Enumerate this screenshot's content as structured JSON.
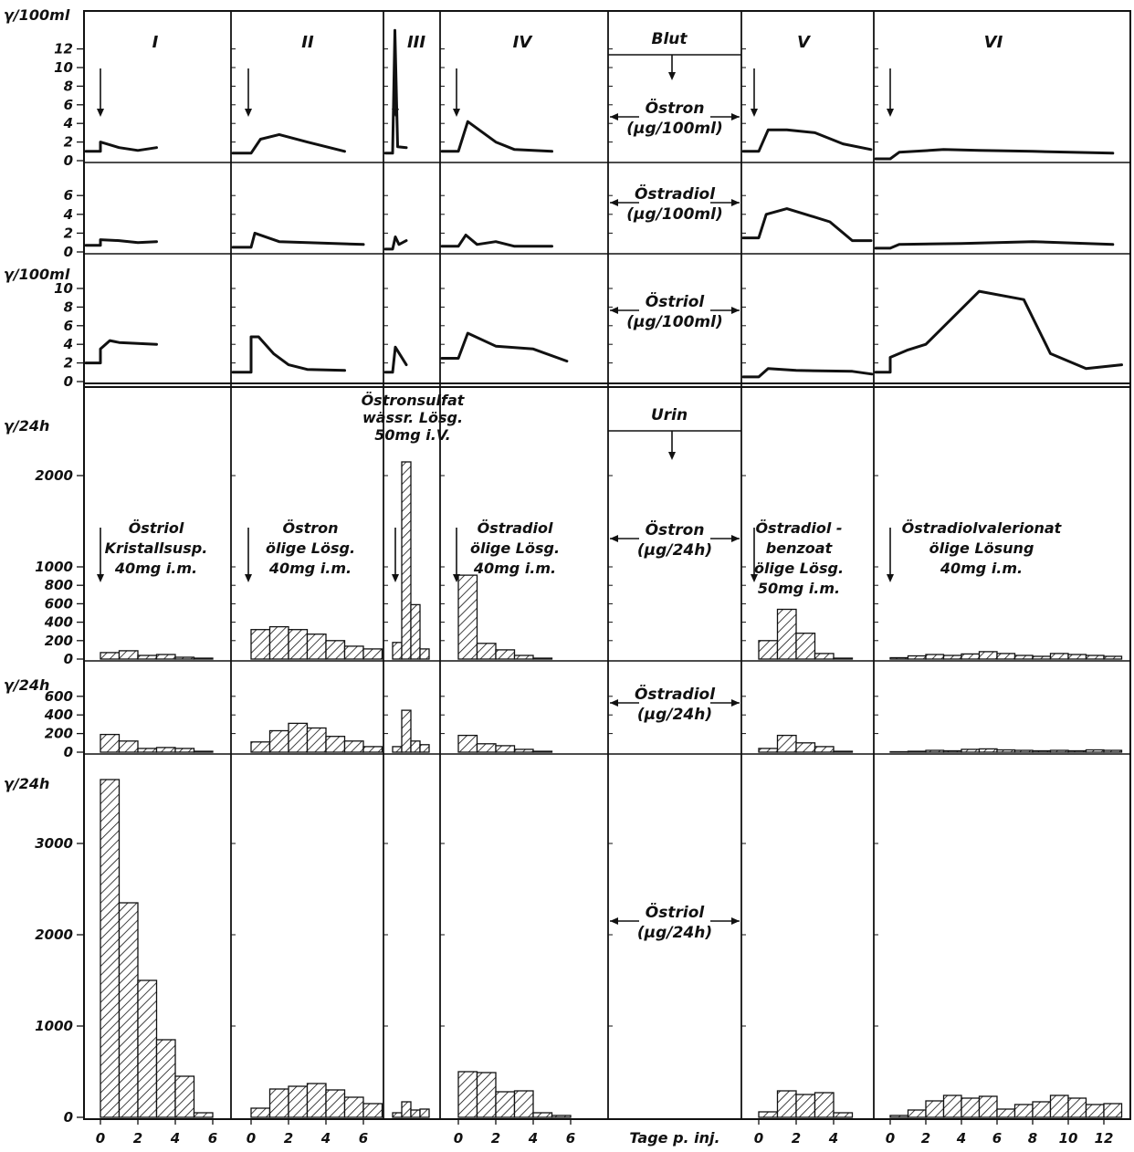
{
  "chart_data": {
    "type": "composite",
    "columns": [
      {
        "id": "I",
        "label": "I",
        "x_ticks": [
          "0",
          "2",
          "4",
          "6"
        ]
      },
      {
        "id": "II",
        "label": "II",
        "x_ticks": [
          "0",
          "2",
          "4",
          "6"
        ]
      },
      {
        "id": "III",
        "label": "III",
        "x_ticks": []
      },
      {
        "id": "IV",
        "label": "IV",
        "x_ticks": [
          "0",
          "2",
          "4",
          "6"
        ]
      },
      {
        "id": "V",
        "label": "V",
        "x_ticks": [
          "0",
          "2",
          "4"
        ]
      },
      {
        "id": "VI",
        "label": "VI",
        "x_ticks": [
          "0",
          "2",
          "4",
          "6",
          "8",
          "10",
          "12"
        ]
      }
    ],
    "x_axis_label": "Tage p. inj.",
    "sections": {
      "blood": "Blut",
      "urine": "Urin"
    },
    "injections": {
      "I": [
        "Östriol",
        "Kristallsusp.",
        "40mg i.m."
      ],
      "II": [
        "Östron",
        "ölige Lösg.",
        "40mg i.m."
      ],
      "III": [
        "Östronsulfat",
        "wässr. Lösg.",
        "50mg i.V."
      ],
      "IV": [
        "Östradiol",
        "ölige Lösg.",
        "40mg i.m."
      ],
      "V": [
        "Östradiol -",
        "benzoat",
        "ölige Lösg.",
        "50mg i.m."
      ],
      "VI": [
        "Östradiolvalerionat",
        "ölige Lösung",
        "40mg i.m."
      ]
    },
    "rows": [
      {
        "id": "blood-oestron",
        "type": "line",
        "y_unit": "γ/100ml",
        "y_ticks": [
          "0",
          "2",
          "4",
          "6",
          "8",
          "10",
          "12"
        ],
        "ylim": [
          0,
          14
        ],
        "center_label": [
          "Östron",
          "(μg/100ml)"
        ],
        "series": {
          "I": {
            "x": [
              -1,
              0,
              0,
              1,
              2,
              3
            ],
            "y": [
              1,
              1,
              2,
              1.4,
              1.1,
              1.4
            ]
          },
          "II": {
            "x": [
              -1,
              0,
              0.5,
              1.5,
              3,
              5
            ],
            "y": [
              0.8,
              0.8,
              2.3,
              2.8,
              2.0,
              1.0
            ]
          },
          "III": {
            "x": [
              -1,
              0,
              0.25,
              0.55,
              1.5
            ],
            "y": [
              0.8,
              0.8,
              14,
              1.5,
              1.4
            ]
          },
          "IV": {
            "x": [
              -1,
              0,
              0.5,
              2,
              3,
              5
            ],
            "y": [
              1,
              1,
              4.2,
              2.0,
              1.2,
              1.0
            ]
          },
          "V": {
            "x": [
              -1,
              0,
              0.5,
              1.5,
              3,
              4.5,
              6
            ],
            "y": [
              1,
              1,
              3.3,
              3.3,
              3.0,
              1.8,
              1.2
            ]
          },
          "VI": {
            "x": [
              -1,
              0,
              0.5,
              3,
              5,
              8,
              12.5
            ],
            "y": [
              0.2,
              0.2,
              0.9,
              1.2,
              1.1,
              1.0,
              0.8
            ]
          }
        }
      },
      {
        "id": "blood-oestradiol",
        "type": "line",
        "y_unit": "",
        "y_ticks": [
          "0",
          "2",
          "4",
          "6"
        ],
        "ylim": [
          0,
          8
        ],
        "center_label": [
          "Östradiol",
          "(μg/100ml)"
        ],
        "series": {
          "I": {
            "x": [
              -1,
              0,
              0,
              1,
              2,
              3
            ],
            "y": [
              0.7,
              0.7,
              1.3,
              1.2,
              1.0,
              1.1
            ]
          },
          "II": {
            "x": [
              -1,
              0,
              0.2,
              1.5,
              3,
              6
            ],
            "y": [
              0.5,
              0.5,
              2.0,
              1.1,
              1.0,
              0.8
            ]
          },
          "III": {
            "x": [
              -1,
              0,
              0.3,
              0.7,
              1.5
            ],
            "y": [
              0.3,
              0.3,
              1.6,
              0.8,
              1.2
            ]
          },
          "IV": {
            "x": [
              -1,
              0,
              0.4,
              1,
              2,
              3,
              5
            ],
            "y": [
              0.6,
              0.6,
              1.8,
              0.8,
              1.1,
              0.6,
              0.6
            ]
          },
          "V": {
            "x": [
              -1,
              0,
              0.4,
              1.5,
              2.5,
              3.8,
              5,
              6
            ],
            "y": [
              1.5,
              1.5,
              4.0,
              4.6,
              4.0,
              3.2,
              1.2,
              1.2
            ]
          },
          "VI": {
            "x": [
              -1,
              0,
              0.5,
              4,
              8,
              12.5
            ],
            "y": [
              0.4,
              0.4,
              0.8,
              0.9,
              1.1,
              0.8
            ]
          }
        }
      },
      {
        "id": "blood-oestriol",
        "type": "line",
        "y_unit": "γ/100ml",
        "y_ticks": [
          "0",
          "2",
          "4",
          "6",
          "8",
          "10"
        ],
        "ylim": [
          0,
          12
        ],
        "center_label": [
          "Östriol",
          "(μg/100ml)"
        ],
        "series": {
          "I": {
            "x": [
              -1,
              0,
              0,
              0.5,
              1,
              2,
              3
            ],
            "y": [
              2,
              2,
              3.5,
              4.4,
              4.2,
              4.1,
              4.0
            ]
          },
          "II": {
            "x": [
              -1,
              0,
              0,
              0.4,
              1.2,
              2,
              3,
              5
            ],
            "y": [
              1,
              1,
              4.8,
              4.8,
              3.0,
              1.8,
              1.3,
              1.2
            ]
          },
          "III": {
            "x": [
              -1,
              0,
              0.3,
              1.5
            ],
            "y": [
              1,
              1,
              3.7,
              1.8
            ]
          },
          "IV": {
            "x": [
              -1,
              0,
              0.5,
              2,
              4,
              5.8
            ],
            "y": [
              2.5,
              2.5,
              5.2,
              3.8,
              3.5,
              2.2
            ]
          },
          "V": {
            "x": [
              -1,
              0,
              0.5,
              2,
              5,
              7
            ],
            "y": [
              0.5,
              0.5,
              1.4,
              1.2,
              1.1,
              0.8
            ]
          },
          "VI": {
            "x": [
              -1,
              0,
              0,
              1,
              2,
              5,
              7.5,
              9,
              11,
              13
            ],
            "y": [
              1,
              1,
              2.6,
              3.4,
              4.0,
              9.7,
              8.8,
              3.0,
              1.4,
              1.8
            ]
          }
        }
      },
      {
        "id": "urine-oestron",
        "type": "bar",
        "y_unit": "γ/24h",
        "y_ticks": [
          "0",
          "200",
          "400",
          "600",
          "800",
          "1000",
          "2000"
        ],
        "ylim": [
          0,
          2600
        ],
        "center_label": [
          "Östron",
          "(μg/24h)"
        ],
        "series": {
          "I": {
            "x0": 0,
            "values": [
              70,
              90,
              40,
              50,
              20,
              10
            ]
          },
          "II": {
            "x0": 0,
            "values": [
              320,
              350,
              320,
              270,
              200,
              140,
              110
            ]
          },
          "III": {
            "x0": 0,
            "values": [
              180,
              2150,
              590,
              110
            ]
          },
          "IV": {
            "x0": 0,
            "values": [
              910,
              170,
              100,
              40,
              10
            ]
          },
          "V": {
            "x0": 0,
            "values": [
              200,
              540,
              280,
              60,
              10
            ]
          },
          "VI": {
            "x0": 0,
            "values": [
              15,
              35,
              50,
              40,
              55,
              80,
              60,
              40,
              30,
              60,
              50,
              40,
              30,
              40,
              40,
              30
            ]
          }
        }
      },
      {
        "id": "urine-oestradiol",
        "type": "bar",
        "y_unit": "γ/24h",
        "y_ticks": [
          "0",
          "200",
          "400",
          "600"
        ],
        "ylim": [
          0,
          800
        ],
        "center_label": [
          "Östradiol",
          "(μg/24h)"
        ],
        "series": {
          "I": {
            "x0": 0,
            "values": [
              190,
              120,
              40,
              50,
              40,
              10
            ]
          },
          "II": {
            "x0": 0,
            "values": [
              110,
              230,
              310,
              260,
              170,
              120,
              60
            ]
          },
          "III": {
            "x0": 0,
            "values": [
              60,
              450,
              120,
              80
            ]
          },
          "IV": {
            "x0": 0,
            "values": [
              180,
              90,
              70,
              30,
              10
            ]
          },
          "V": {
            "x0": 0,
            "values": [
              40,
              180,
              100,
              60,
              10
            ]
          },
          "VI": {
            "x0": 0,
            "values": [
              5,
              10,
              20,
              15,
              30,
              35,
              25,
              20,
              15,
              20,
              15,
              25,
              20,
              25,
              30,
              20
            ]
          }
        }
      },
      {
        "id": "urine-oestriol",
        "type": "bar",
        "y_unit": "γ/24h",
        "y_ticks": [
          "0",
          "1000",
          "2000",
          "3000"
        ],
        "ylim": [
          0,
          4000
        ],
        "center_label": [
          "Östriol",
          "(μg/24h)"
        ],
        "series": {
          "I": {
            "x0": 0,
            "values": [
              3700,
              2350,
              1500,
              850,
              450,
              50
            ]
          },
          "II": {
            "x0": 0,
            "values": [
              100,
              310,
              340,
              370,
              300,
              220,
              150
            ]
          },
          "III": {
            "x0": 0,
            "values": [
              50,
              170,
              80,
              90
            ]
          },
          "IV": {
            "x0": 0,
            "values": [
              500,
              490,
              280,
              290,
              50,
              20
            ]
          },
          "V": {
            "x0": 0,
            "values": [
              60,
              290,
              250,
              270,
              50
            ]
          },
          "VI": {
            "x0": 0,
            "values": [
              20,
              80,
              180,
              240,
              210,
              230,
              90,
              140,
              170,
              240,
              210,
              140,
              150
            ]
          }
        }
      }
    ]
  }
}
